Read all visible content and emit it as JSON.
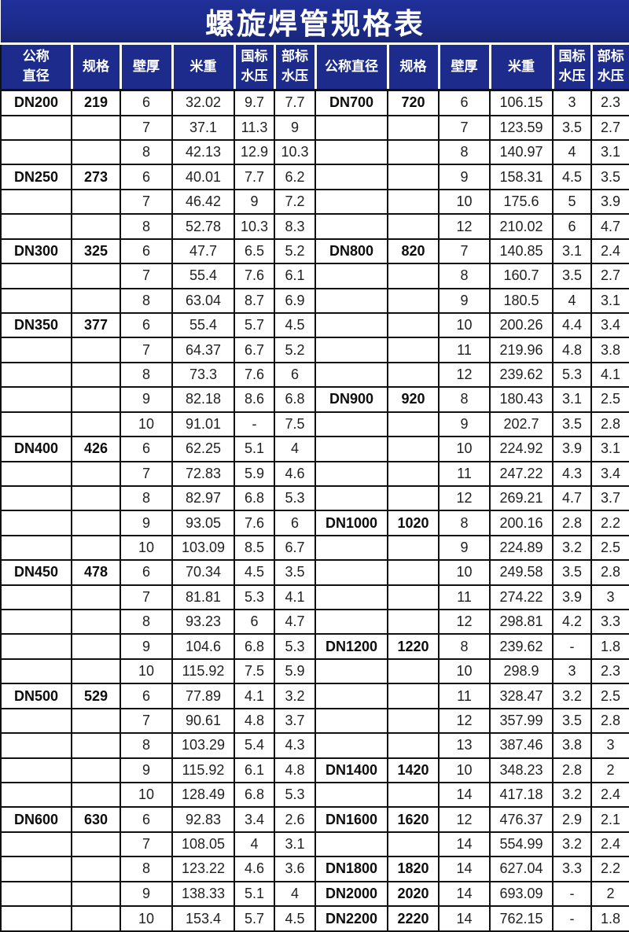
{
  "title": "螺旋焊管规格表",
  "colors": {
    "header_bg": "#1c2b8c",
    "header_text": "#ffffff",
    "grid_border": "#111111",
    "body_text": "#1f1f1f"
  },
  "table": {
    "headers_left": [
      "公称\n直径",
      "规格",
      "壁厚",
      "米重",
      "国标\n水压",
      "部标\n水压"
    ],
    "headers_right": [
      "公称直径",
      "规格",
      "壁厚",
      "米重",
      "国标\n水压",
      "部标\n水压"
    ],
    "rows_left": [
      [
        "DN200",
        "219",
        "6",
        "32.02",
        "9.7",
        "7.7"
      ],
      [
        "",
        "",
        "7",
        "37.1",
        "11.3",
        "9"
      ],
      [
        "",
        "",
        "8",
        "42.13",
        "12.9",
        "10.3"
      ],
      [
        "DN250",
        "273",
        "6",
        "40.01",
        "7.7",
        "6.2"
      ],
      [
        "",
        "",
        "7",
        "46.42",
        "9",
        "7.2"
      ],
      [
        "",
        "",
        "8",
        "52.78",
        "10.3",
        "8.3"
      ],
      [
        "DN300",
        "325",
        "6",
        "47.7",
        "6.5",
        "5.2"
      ],
      [
        "",
        "",
        "7",
        "55.4",
        "7.6",
        "6.1"
      ],
      [
        "",
        "",
        "8",
        "63.04",
        "8.7",
        "6.9"
      ],
      [
        "DN350",
        "377",
        "6",
        "55.4",
        "5.7",
        "4.5"
      ],
      [
        "",
        "",
        "7",
        "64.37",
        "6.7",
        "5.2"
      ],
      [
        "",
        "",
        "8",
        "73.3",
        "7.6",
        "6"
      ],
      [
        "",
        "",
        "9",
        "82.18",
        "8.6",
        "6.8"
      ],
      [
        "",
        "",
        "10",
        "91.01",
        "-",
        "7.5"
      ],
      [
        "DN400",
        "426",
        "6",
        "62.25",
        "5.1",
        "4"
      ],
      [
        "",
        "",
        "7",
        "72.83",
        "5.9",
        "4.6"
      ],
      [
        "",
        "",
        "8",
        "82.97",
        "6.8",
        "5.3"
      ],
      [
        "",
        "",
        "9",
        "93.05",
        "7.6",
        "6"
      ],
      [
        "",
        "",
        "10",
        "103.09",
        "8.5",
        "6.7"
      ],
      [
        "DN450",
        "478",
        "6",
        "70.34",
        "4.5",
        "3.5"
      ],
      [
        "",
        "",
        "7",
        "81.81",
        "5.3",
        "4.1"
      ],
      [
        "",
        "",
        "8",
        "93.23",
        "6",
        "4.7"
      ],
      [
        "",
        "",
        "9",
        "104.6",
        "6.8",
        "5.3"
      ],
      [
        "",
        "",
        "10",
        "115.92",
        "7.5",
        "5.9"
      ],
      [
        "DN500",
        "529",
        "6",
        "77.89",
        "4.1",
        "3.2"
      ],
      [
        "",
        "",
        "7",
        "90.61",
        "4.8",
        "3.7"
      ],
      [
        "",
        "",
        "8",
        "103.29",
        "5.4",
        "4.3"
      ],
      [
        "",
        "",
        "9",
        "115.92",
        "6.1",
        "4.8"
      ],
      [
        "",
        "",
        "10",
        "128.49",
        "6.8",
        "5.3"
      ],
      [
        "DN600",
        "630",
        "6",
        "92.83",
        "3.4",
        "2.6"
      ],
      [
        "",
        "",
        "7",
        "108.05",
        "4",
        "3.1"
      ],
      [
        "",
        "",
        "8",
        "123.22",
        "4.6",
        "3.6"
      ],
      [
        "",
        "",
        "9",
        "138.33",
        "5.1",
        "4"
      ],
      [
        "",
        "",
        "10",
        "153.4",
        "5.7",
        "4.5"
      ]
    ],
    "rows_right": [
      [
        "DN700",
        "720",
        "6",
        "106.15",
        "3",
        "2.3"
      ],
      [
        "",
        "",
        "7",
        "123.59",
        "3.5",
        "2.7"
      ],
      [
        "",
        "",
        "8",
        "140.97",
        "4",
        "3.1"
      ],
      [
        "",
        "",
        "9",
        "158.31",
        "4.5",
        "3.5"
      ],
      [
        "",
        "",
        "10",
        "175.6",
        "5",
        "3.9"
      ],
      [
        "",
        "",
        "12",
        "210.02",
        "6",
        "4.7"
      ],
      [
        "DN800",
        "820",
        "7",
        "140.85",
        "3.1",
        "2.4"
      ],
      [
        "",
        "",
        "8",
        "160.7",
        "3.5",
        "2.7"
      ],
      [
        "",
        "",
        "9",
        "180.5",
        "4",
        "3.1"
      ],
      [
        "",
        "",
        "10",
        "200.26",
        "4.4",
        "3.4"
      ],
      [
        "",
        "",
        "11",
        "219.96",
        "4.8",
        "3.8"
      ],
      [
        "",
        "",
        "12",
        "239.62",
        "5.3",
        "4.1"
      ],
      [
        "DN900",
        "920",
        "8",
        "180.43",
        "3.1",
        "2.5"
      ],
      [
        "",
        "",
        "9",
        "202.7",
        "3.5",
        "2.8"
      ],
      [
        "",
        "",
        "10",
        "224.92",
        "3.9",
        "3.1"
      ],
      [
        "",
        "",
        "11",
        "247.22",
        "4.3",
        "3.4"
      ],
      [
        "",
        "",
        "12",
        "269.21",
        "4.7",
        "3.7"
      ],
      [
        "DN1000",
        "1020",
        "8",
        "200.16",
        "2.8",
        "2.2"
      ],
      [
        "",
        "",
        "9",
        "224.89",
        "3.2",
        "2.5"
      ],
      [
        "",
        "",
        "10",
        "249.58",
        "3.5",
        "2.8"
      ],
      [
        "",
        "",
        "11",
        "274.22",
        "3.9",
        "3"
      ],
      [
        "",
        "",
        "12",
        "298.81",
        "4.2",
        "3.3"
      ],
      [
        "DN1200",
        "1220",
        "8",
        "239.62",
        "-",
        "1.8"
      ],
      [
        "",
        "",
        "10",
        "298.9",
        "3",
        "2.3"
      ],
      [
        "",
        "",
        "11",
        "328.47",
        "3.2",
        "2.5"
      ],
      [
        "",
        "",
        "12",
        "357.99",
        "3.5",
        "2.8"
      ],
      [
        "",
        "",
        "13",
        "387.46",
        "3.8",
        "3"
      ],
      [
        "DN1400",
        "1420",
        "10",
        "348.23",
        "2.8",
        "2"
      ],
      [
        "",
        "",
        "14",
        "417.18",
        "3.2",
        "2.4"
      ],
      [
        "DN1600",
        "1620",
        "12",
        "476.37",
        "2.9",
        "2.1"
      ],
      [
        "",
        "",
        "14",
        "554.99",
        "3.2",
        "2.4"
      ],
      [
        "DN1800",
        "1820",
        "14",
        "627.04",
        "3.3",
        "2.2"
      ],
      [
        "DN2000",
        "2020",
        "14",
        "693.09",
        "-",
        "2"
      ],
      [
        "DN2200",
        "2220",
        "14",
        "762.15",
        "-",
        "1.8"
      ]
    ]
  }
}
